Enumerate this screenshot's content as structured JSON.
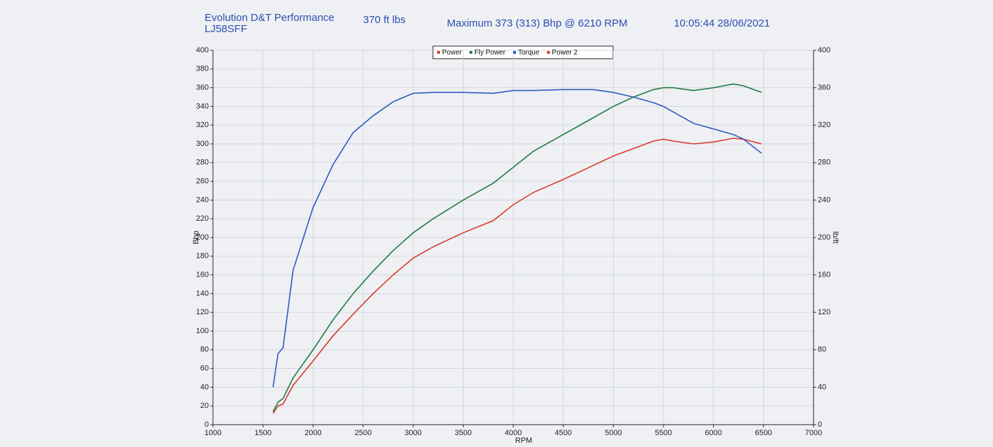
{
  "chart_data": {
    "type": "line",
    "title": "Evolution D&T Performance",
    "peak_torque": "370 ft lbs",
    "registration": "LJ58SFF",
    "subtitle": "Maximum 373 (313) Bhp @ 6210 RPM",
    "timestamp": "10:05:44 28/06/2021",
    "x_label": "RPM",
    "y_label": "Bhp",
    "y2_label": "lb/ft",
    "x": [
      1600,
      1650,
      1700,
      1800,
      2000,
      2200,
      2400,
      2600,
      2800,
      3000,
      3200,
      3500,
      3800,
      4000,
      4200,
      4500,
      4800,
      5000,
      5200,
      5400,
      5500,
      5600,
      5800,
      6000,
      6200,
      6300,
      6480
    ],
    "series": [
      {
        "name": "Power",
        "color": "#d63a2e",
        "values": [
          12,
          20,
          22,
          42,
          68,
          95,
          118,
          140,
          160,
          178,
          190,
          205,
          218,
          235,
          248,
          262,
          277,
          287,
          295,
          303,
          305,
          303,
          300,
          302,
          306,
          305,
          300
        ]
      },
      {
        "name": "Fly Power",
        "color": "#1f7a43",
        "values": [
          14,
          24,
          28,
          50,
          80,
          112,
          140,
          164,
          186,
          205,
          220,
          240,
          258,
          275,
          292,
          310,
          328,
          340,
          350,
          358,
          360,
          360,
          357,
          360,
          364,
          362,
          355
        ]
      },
      {
        "name": "Torque",
        "color": "#2f58c4",
        "axis": "y2",
        "values": [
          40,
          76,
          82,
          165,
          232,
          278,
          312,
          330,
          345,
          354,
          355,
          355,
          354,
          357,
          357,
          358,
          358,
          355,
          350,
          344,
          340,
          334,
          322,
          316,
          310,
          305,
          290
        ]
      },
      {
        "name": "Power 2",
        "color": "#d63a2e",
        "values": [
          null,
          null,
          null,
          null,
          null,
          null,
          null,
          null,
          null,
          null,
          null,
          null,
          null,
          null,
          null,
          null,
          null,
          null,
          null,
          null,
          null,
          null,
          null,
          null,
          null,
          null,
          null
        ]
      }
    ],
    "xlim": [
      1000,
      7000
    ],
    "xticks": [
      1000,
      1500,
      2000,
      2500,
      3000,
      3500,
      4000,
      4500,
      5000,
      5500,
      6000,
      6500,
      7000
    ],
    "ylim": [
      0,
      400
    ],
    "yticks": [
      0,
      20,
      40,
      60,
      80,
      100,
      120,
      140,
      160,
      180,
      200,
      220,
      240,
      260,
      280,
      300,
      320,
      340,
      360,
      380,
      400
    ],
    "y2lim": [
      0,
      400
    ],
    "y2ticks": [
      0,
      40,
      80,
      120,
      160,
      200,
      240,
      280,
      320,
      360,
      400
    ],
    "grid": true
  }
}
